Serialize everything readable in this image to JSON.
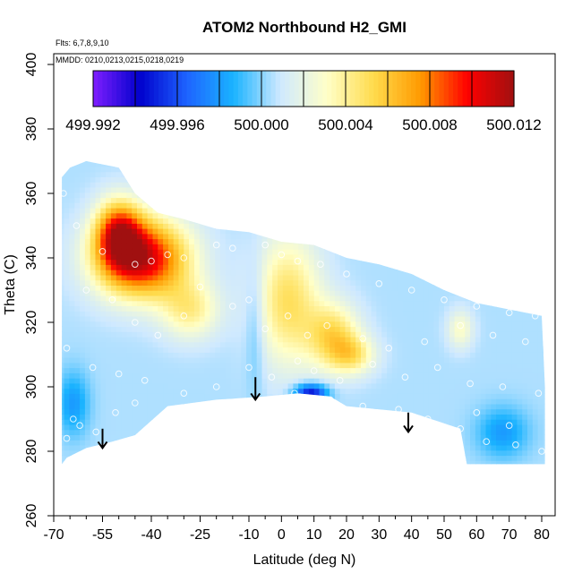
{
  "chart_data": {
    "type": "heatmap",
    "title": "ATOM2 Northbound H2_GMI",
    "subtitle_flights": "Flts: 6,7,8,9,10",
    "subtitle_dates": "MMDD: 0210,0213,0215,0218,0219",
    "xlabel": "Latitude (deg N)",
    "ylabel": "Theta (C)",
    "xlim": [
      -70,
      82
    ],
    "ylim": [
      260,
      400
    ],
    "x_ticks": [
      -70,
      -55,
      -40,
      -25,
      -10,
      0,
      10,
      20,
      30,
      40,
      50,
      60,
      70,
      80
    ],
    "x_minor_ticks": [
      -65,
      -60,
      -50,
      -45,
      -35,
      -30,
      -20,
      -15,
      -5,
      5,
      15,
      25,
      35,
      45,
      55,
      65,
      75
    ],
    "y_ticks": [
      260,
      280,
      300,
      320,
      340,
      360,
      380,
      400
    ],
    "colorbar": {
      "min": 499.992,
      "max": 500.012,
      "tick_values": [
        499.992,
        499.996,
        500.0,
        500.004,
        500.008,
        500.012
      ],
      "tick_labels": [
        "499.992",
        "499.996",
        "500.000",
        "500.004",
        "500.008",
        "500.012"
      ],
      "colors": [
        "#7f1fff",
        "#0000cc",
        "#1e63ff",
        "#1ab3ff",
        "#cfe9ff",
        "#ffffc8",
        "#ffdb4d",
        "#ff9a00",
        "#ff0000",
        "#a01010"
      ]
    },
    "grid": false,
    "data_region": {
      "top": [
        [
          -67.5,
          365
        ],
        [
          -65,
          368
        ],
        [
          -60,
          370
        ],
        [
          -50,
          368
        ],
        [
          -45,
          360
        ],
        [
          -38,
          354
        ],
        [
          -30,
          352
        ],
        [
          -20,
          349
        ],
        [
          -10,
          348
        ],
        [
          0,
          345
        ],
        [
          10,
          344
        ],
        [
          20,
          340
        ],
        [
          30,
          338
        ],
        [
          40,
          335
        ],
        [
          50,
          330
        ],
        [
          60,
          326
        ],
        [
          70,
          324
        ],
        [
          80,
          322
        ]
      ],
      "right_edge": [
        [
          80,
          322
        ],
        [
          81,
          300
        ],
        [
          81,
          276
        ]
      ],
      "bottom": [
        [
          81,
          276
        ],
        [
          57,
          276
        ],
        [
          55,
          287
        ],
        [
          40,
          292
        ],
        [
          20,
          294
        ],
        [
          15,
          297
        ],
        [
          5,
          298
        ],
        [
          -5,
          297
        ],
        [
          -20,
          296
        ],
        [
          -35,
          294
        ],
        [
          -45,
          285
        ],
        [
          -52,
          283
        ],
        [
          -60,
          281
        ],
        [
          -66,
          278
        ],
        [
          -67.5,
          276
        ]
      ]
    },
    "field_features": [
      {
        "lat": -43,
        "theta": 340,
        "value": 500.011,
        "spread_lat": 14,
        "spread_theta": 12
      },
      {
        "lat": -50,
        "theta": 348,
        "value": 500.008,
        "spread_lat": 7,
        "spread_theta": 10
      },
      {
        "lat": -28,
        "theta": 324,
        "value": 500.004,
        "spread_lat": 9,
        "spread_theta": 9
      },
      {
        "lat": 2,
        "theta": 327,
        "value": 500.005,
        "spread_lat": 10,
        "spread_theta": 20
      },
      {
        "lat": 16,
        "theta": 316,
        "value": 500.005,
        "spread_lat": 8,
        "spread_theta": 10
      },
      {
        "lat": 22,
        "theta": 310,
        "value": 500.004,
        "spread_lat": 7,
        "spread_theta": 6
      },
      {
        "lat": 9,
        "theta": 298,
        "value": 499.994,
        "spread_lat": 5,
        "spread_theta": 3
      },
      {
        "lat": -8,
        "theta": 320,
        "value": 499.999,
        "spread_lat": 3,
        "spread_theta": 20
      },
      {
        "lat": 55,
        "theta": 318,
        "value": 500.003,
        "spread_lat": 4,
        "spread_theta": 6
      },
      {
        "lat": 68,
        "theta": 286,
        "value": 499.998,
        "spread_lat": 8,
        "spread_theta": 8
      },
      {
        "lat": -64,
        "theta": 295,
        "value": 499.998,
        "spread_lat": 5,
        "spread_theta": 10
      }
    ],
    "base_value": 500.0005,
    "sample_points": [
      [
        -67,
        360
      ],
      [
        -63,
        350
      ],
      [
        -55,
        342
      ],
      [
        -45,
        338
      ],
      [
        -40,
        339
      ],
      [
        -35,
        341
      ],
      [
        -30,
        340
      ],
      [
        -20,
        344
      ],
      [
        -15,
        343
      ],
      [
        -5,
        344
      ],
      [
        0,
        341
      ],
      [
        5,
        339
      ],
      [
        12,
        338
      ],
      [
        20,
        335
      ],
      [
        30,
        332
      ],
      [
        40,
        330
      ],
      [
        50,
        327
      ],
      [
        60,
        325
      ],
      [
        70,
        323
      ],
      [
        78,
        322
      ],
      [
        -60,
        330
      ],
      [
        -52,
        327
      ],
      [
        -45,
        320
      ],
      [
        -38,
        316
      ],
      [
        -30,
        322
      ],
      [
        -25,
        331
      ],
      [
        -15,
        325
      ],
      [
        -10,
        327
      ],
      [
        -5,
        318
      ],
      [
        2,
        322
      ],
      [
        8,
        316
      ],
      [
        14,
        319
      ],
      [
        25,
        315
      ],
      [
        33,
        312
      ],
      [
        44,
        314
      ],
      [
        55,
        319
      ],
      [
        65,
        316
      ],
      [
        75,
        314
      ],
      [
        -66,
        312
      ],
      [
        -58,
        306
      ],
      [
        -50,
        304
      ],
      [
        -42,
        302
      ],
      [
        -30,
        298
      ],
      [
        -20,
        300
      ],
      [
        -10,
        306
      ],
      [
        -3,
        303
      ],
      [
        5,
        308
      ],
      [
        10,
        305
      ],
      [
        18,
        302
      ],
      [
        28,
        307
      ],
      [
        38,
        303
      ],
      [
        48,
        306
      ],
      [
        58,
        301
      ],
      [
        68,
        300
      ],
      [
        79,
        298
      ],
      [
        -64,
        290
      ],
      [
        -57,
        286
      ],
      [
        -51,
        292
      ],
      [
        -45,
        295
      ],
      [
        4,
        298
      ],
      [
        15,
        296
      ],
      [
        25,
        294
      ],
      [
        36,
        293
      ],
      [
        45,
        290
      ],
      [
        55,
        287
      ],
      [
        63,
        283
      ],
      [
        72,
        282
      ],
      [
        80,
        280
      ],
      [
        -66,
        284
      ],
      [
        -62,
        288
      ],
      [
        60,
        292
      ],
      [
        70,
        288
      ]
    ],
    "arrows": [
      {
        "lat": -55,
        "theta_top": 287,
        "theta_tip": 281
      },
      {
        "lat": -8,
        "theta_top": 303,
        "theta_tip": 296
      },
      {
        "lat": 39,
        "theta_top": 292,
        "theta_tip": 286
      }
    ]
  }
}
